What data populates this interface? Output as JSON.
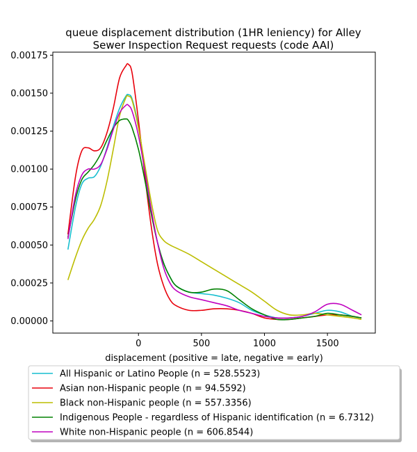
{
  "chart_data": {
    "type": "line",
    "title_lines": [
      "queue displacement distribution (1HR leniency) for Alley",
      "Sewer Inspection Request  requests (code AAI)"
    ],
    "xlabel": "displacement (positive = late, negative = early)",
    "ylabel": "",
    "xlim": [
      -680,
      1880
    ],
    "ylim": [
      -8e-05,
      0.00177
    ],
    "xticks": [
      0,
      500,
      1000,
      1500
    ],
    "xtick_labels": [
      "0",
      "500",
      "1000",
      "1500"
    ],
    "yticks": [
      0,
      0.00025,
      0.0005,
      0.00075,
      0.001,
      0.00125,
      0.0015,
      0.00175
    ],
    "ytick_labels": [
      "0.00000",
      "0.00025",
      "0.00050",
      "0.00075",
      "0.00100",
      "0.00125",
      "0.00150",
      "0.00175"
    ],
    "legend_position": "below plot",
    "series": [
      {
        "name": "All Hispanic or Latino People (n = 528.5523)",
        "color": "#17becf",
        "x": [
          -560,
          -500,
          -450,
          -400,
          -350,
          -300,
          -250,
          -200,
          -150,
          -100,
          -80,
          -50,
          0,
          50,
          100,
          150,
          200,
          250,
          300,
          400,
          500,
          600,
          700,
          800,
          900,
          1000,
          1100,
          1200,
          1300,
          1400,
          1500,
          1600,
          1700,
          1770
        ],
        "y": [
          0.00047,
          0.00075,
          0.0009,
          0.00094,
          0.00095,
          0.00102,
          0.00114,
          0.00128,
          0.0014,
          0.00148,
          0.00149,
          0.00146,
          0.00128,
          0.001,
          0.00073,
          0.00052,
          0.00038,
          0.00029,
          0.00023,
          0.00019,
          0.00018,
          0.00017,
          0.00015,
          0.00012,
          7e-05,
          4e-05,
          2e-05,
          2e-05,
          3e-05,
          5e-05,
          7e-05,
          6e-05,
          3e-05,
          2e-05
        ]
      },
      {
        "name": "Asian non-Hispanic people (n = 94.5592)",
        "color": "#e8000b",
        "x": [
          -560,
          -500,
          -450,
          -400,
          -350,
          -300,
          -250,
          -200,
          -150,
          -100,
          -80,
          -50,
          0,
          50,
          100,
          150,
          200,
          250,
          300,
          400,
          500,
          600,
          700,
          800,
          900,
          1000,
          1100,
          1200,
          1300,
          1400,
          1500,
          1600,
          1700,
          1770
        ],
        "y": [
          0.00057,
          0.00095,
          0.00112,
          0.00114,
          0.00112,
          0.00114,
          0.00124,
          0.0014,
          0.0016,
          0.00168,
          0.00169,
          0.00163,
          0.00132,
          0.00096,
          0.00063,
          0.00038,
          0.00023,
          0.00014,
          0.0001,
          7e-05,
          7e-05,
          8e-05,
          8e-05,
          7e-05,
          5e-05,
          2e-05,
          1e-05,
          1e-05,
          2e-05,
          3e-05,
          4e-05,
          4e-05,
          3e-05,
          2e-05
        ]
      },
      {
        "name": "Black non-Hispanic people (n = 557.3356)",
        "color": "#bcbd00",
        "x": [
          -560,
          -500,
          -450,
          -400,
          -350,
          -300,
          -250,
          -200,
          -150,
          -100,
          -80,
          -50,
          0,
          50,
          100,
          150,
          200,
          250,
          300,
          400,
          500,
          600,
          700,
          800,
          900,
          1000,
          1100,
          1200,
          1300,
          1400,
          1500,
          1600,
          1700,
          1770
        ],
        "y": [
          0.00027,
          0.00042,
          0.00053,
          0.00061,
          0.00067,
          0.00076,
          0.00092,
          0.00113,
          0.00135,
          0.00147,
          0.00148,
          0.00145,
          0.00127,
          0.00103,
          0.00079,
          0.0006,
          0.00053,
          0.0005,
          0.00048,
          0.00044,
          0.00039,
          0.00034,
          0.00029,
          0.00024,
          0.00019,
          0.00013,
          7e-05,
          4e-05,
          4e-05,
          5e-05,
          4e-05,
          3e-05,
          2e-05,
          1e-05
        ]
      },
      {
        "name": "Indigenous People - regardless of Hispanic identification (n = 6.7312)",
        "color": "#008000",
        "x": [
          -560,
          -500,
          -450,
          -400,
          -350,
          -300,
          -250,
          -200,
          -150,
          -100,
          -80,
          -50,
          0,
          50,
          100,
          150,
          200,
          250,
          300,
          400,
          500,
          600,
          700,
          800,
          900,
          1000,
          1100,
          1200,
          1300,
          1400,
          1500,
          1600,
          1700,
          1770
        ],
        "y": [
          0.00055,
          0.0008,
          0.00093,
          0.00098,
          0.00103,
          0.0011,
          0.00119,
          0.00127,
          0.00132,
          0.00133,
          0.00132,
          0.00127,
          0.00113,
          0.00093,
          0.00071,
          0.00052,
          0.00038,
          0.00029,
          0.00023,
          0.00019,
          0.00019,
          0.00021,
          0.0002,
          0.00014,
          8e-05,
          4e-05,
          1e-05,
          1e-05,
          2e-05,
          3e-05,
          5e-05,
          4e-05,
          3e-05,
          2e-05
        ]
      },
      {
        "name": "White non-Hispanic people (n = 606.8544)",
        "color": "#bf00bf",
        "x": [
          -560,
          -500,
          -450,
          -400,
          -350,
          -300,
          -250,
          -200,
          -150,
          -100,
          -80,
          -50,
          0,
          50,
          100,
          150,
          200,
          250,
          300,
          400,
          500,
          600,
          700,
          800,
          900,
          1000,
          1100,
          1200,
          1300,
          1400,
          1500,
          1600,
          1700,
          1770
        ],
        "y": [
          0.00054,
          0.00083,
          0.00096,
          0.001,
          0.001,
          0.00103,
          0.00113,
          0.00126,
          0.00137,
          0.00142,
          0.00142,
          0.00138,
          0.00122,
          0.00099,
          0.00074,
          0.00052,
          0.00035,
          0.00025,
          0.0002,
          0.00016,
          0.00014,
          0.00012,
          0.0001,
          7e-05,
          5e-05,
          3e-05,
          2e-05,
          2e-05,
          3e-05,
          6e-05,
          0.00011,
          0.00011,
          7e-05,
          4e-05
        ]
      }
    ]
  }
}
